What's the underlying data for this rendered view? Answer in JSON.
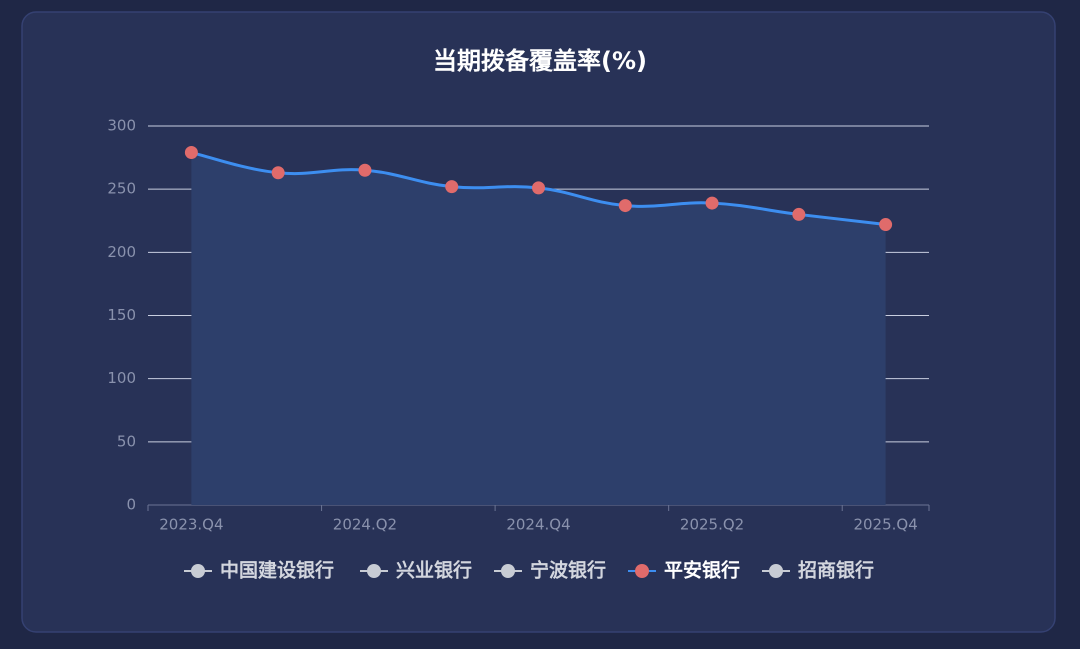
{
  "chart_data": {
    "type": "line",
    "title": "当期拨备覆盖率(%)",
    "categories": [
      "2023.Q4",
      null,
      "2024.Q2",
      null,
      "2024.Q4",
      null,
      "2025.Q2",
      null,
      "2025.Q4"
    ],
    "series": [
      {
        "name": "中国建设银行",
        "color": "#c8ccd4",
        "visible": false
      },
      {
        "name": "兴业银行",
        "color": "#c8ccd4",
        "visible": false
      },
      {
        "name": "宁波银行",
        "color": "#c8ccd4",
        "visible": false
      },
      {
        "name": "平安银行",
        "color": "#3d8ef0",
        "marker_color": "#e06b6b",
        "area_color": "#2d3f6b",
        "visible": true,
        "values": [
          279,
          263,
          265,
          252,
          251,
          237,
          239,
          230,
          222
        ]
      },
      {
        "name": "招商银行",
        "color": "#c8ccd4",
        "visible": false
      }
    ],
    "ylim": [
      0,
      300
    ],
    "yticks": [
      0,
      50,
      100,
      150,
      200,
      250,
      300
    ],
    "grid": true,
    "smooth": true,
    "legend": "bottom"
  }
}
